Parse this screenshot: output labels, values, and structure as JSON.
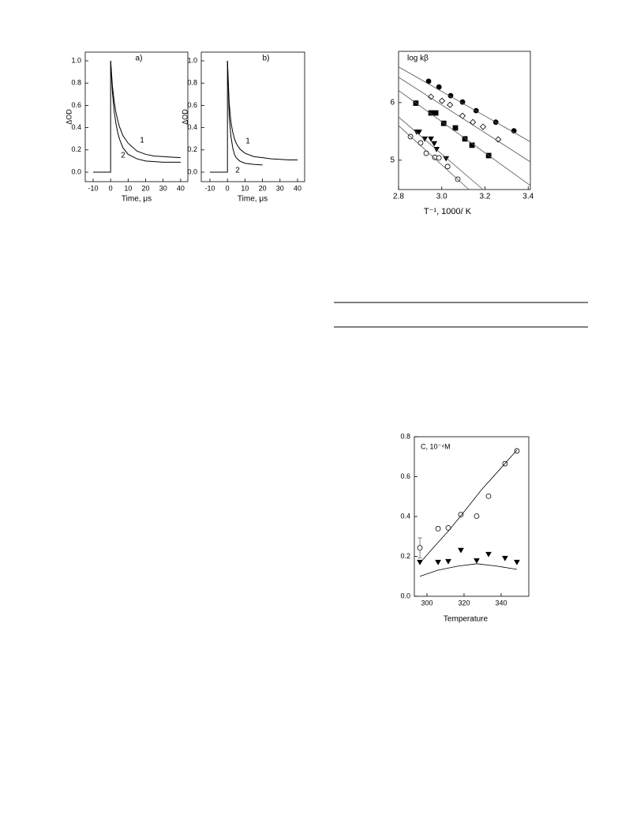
{
  "chart_data": [
    {
      "type": "line",
      "panel_label": "a)",
      "y_label": "ΔOD",
      "x_label": "Time, μs",
      "xlim": [
        -14.5,
        44.1
      ],
      "ylim": [
        -0.085,
        1.078
      ],
      "xticks": [
        -10,
        0,
        10,
        20,
        30,
        40
      ],
      "yticks": [
        {
          "value": 0,
          "label": "0.0"
        },
        0.2,
        0.4,
        0.6,
        0.8,
        {
          "value": 1,
          "label": "1.0"
        }
      ],
      "series": [
        {
          "name": "1",
          "color": "#000000",
          "x": [
            -10,
            -5,
            0,
            0,
            1,
            2,
            3,
            4,
            5,
            7,
            10,
            15,
            20,
            25,
            30,
            35,
            40
          ],
          "values": [
            0,
            0,
            0,
            1.0,
            0.78,
            0.64,
            0.54,
            0.47,
            0.41,
            0.33,
            0.26,
            0.19,
            0.16,
            0.145,
            0.14,
            0.135,
            0.13
          ]
        },
        {
          "name": "2",
          "color": "#000000",
          "x": [
            0,
            1,
            2,
            3,
            4,
            5,
            7,
            10,
            15,
            20,
            25,
            30,
            35,
            40
          ],
          "values": [
            1.0,
            0.72,
            0.55,
            0.44,
            0.36,
            0.3,
            0.22,
            0.16,
            0.12,
            0.1,
            0.095,
            0.09,
            0.09,
            0.09
          ]
        }
      ]
    },
    {
      "type": "line",
      "panel_label": "b)",
      "y_label": "ΔOD",
      "x_label": "Time, μs",
      "xlim": [
        -14.95,
        44.05
      ],
      "ylim": [
        -0.085,
        1.078
      ],
      "xticks": [
        -10,
        0,
        10,
        20,
        30,
        40
      ],
      "yticks": [
        {
          "value": 0,
          "label": "0.0"
        },
        0.2,
        0.4,
        0.6,
        0.8,
        {
          "value": 1,
          "label": "1.0"
        }
      ],
      "series": [
        {
          "name": "1",
          "color": "#000000",
          "x": [
            -10,
            -5,
            0,
            0,
            1,
            2,
            3,
            4,
            5,
            7,
            10,
            15,
            20,
            25,
            30,
            35,
            40
          ],
          "values": [
            0,
            0,
            0,
            1.0,
            0.62,
            0.45,
            0.36,
            0.3,
            0.26,
            0.21,
            0.17,
            0.14,
            0.13,
            0.12,
            0.115,
            0.11,
            0.11
          ]
        },
        {
          "name": "2",
          "color": "#000000",
          "x": [
            0,
            1,
            2,
            3,
            4,
            5,
            7,
            10,
            15,
            20
          ],
          "values": [
            1.0,
            0.5,
            0.32,
            0.22,
            0.16,
            0.13,
            0.1,
            0.08,
            0.07,
            0.065
          ]
        }
      ]
    },
    {
      "type": "scatter",
      "y_label": "log kβ",
      "x_label": "T⁻¹, 1000/ K",
      "xlim": [
        2.8,
        3.41
      ],
      "ylim": [
        4.49,
        6.89
      ],
      "xticks": [
        2.8,
        {
          "value": 3,
          "label": "3.0"
        },
        3.2,
        3.4
      ],
      "yticks": [
        5,
        6
      ],
      "series": [
        {
          "marker": "circle",
          "filled": true,
          "color": "#000000",
          "x": [
            2.939,
            2.987,
            3.041,
            3.096,
            3.159,
            3.25,
            3.334
          ],
          "values": [
            6.37,
            6.27,
            6.12,
            6.01,
            5.86,
            5.66,
            5.51
          ]
        },
        {
          "marker": "diamond",
          "filled": false,
          "color": "#000000",
          "x": [
            2.95,
            3.001,
            3.038,
            3.096,
            3.144,
            3.191,
            3.261
          ],
          "values": [
            6.1,
            6.03,
            5.96,
            5.77,
            5.66,
            5.58,
            5.36
          ]
        },
        {
          "marker": "square",
          "filled": true,
          "color": "#000000",
          "x": [
            2.88,
            2.95,
            2.972,
            3.009,
            3.063,
            3.107,
            3.14,
            3.217
          ],
          "values": [
            5.99,
            5.82,
            5.82,
            5.64,
            5.56,
            5.37,
            5.26,
            5.08
          ]
        },
        {
          "marker": "triangle-down",
          "filled": true,
          "color": "#000000",
          "x": [
            2.884,
            2.895,
            2.921,
            2.95,
            2.965,
            2.976,
            3.02
          ],
          "values": [
            5.49,
            5.49,
            5.37,
            5.37,
            5.29,
            5.19,
            5.03
          ]
        },
        {
          "marker": "circle",
          "filled": false,
          "color": "#000000",
          "x": [
            2.855,
            2.902,
            2.928,
            2.968,
            2.987,
            3.027,
            3.074
          ],
          "values": [
            5.41,
            5.3,
            5.12,
            5.05,
            5.04,
            4.89,
            4.67
          ]
        },
        {
          "mode": "line",
          "color": "#555555",
          "x": [
            2.8,
            3.41
          ],
          "values": [
            6.62,
            5.32
          ]
        },
        {
          "mode": "line",
          "color": "#555555",
          "x": [
            2.8,
            3.41
          ],
          "values": [
            6.44,
            4.97
          ]
        },
        {
          "mode": "line",
          "color": "#555555",
          "x": [
            2.8,
            3.41
          ],
          "values": [
            6.21,
            4.56
          ]
        },
        {
          "mode": "line",
          "color": "#555555",
          "x": [
            2.8,
            3.191
          ],
          "values": [
            5.75,
            4.49
          ]
        },
        {
          "mode": "line",
          "color": "#555555",
          "x": [
            2.8,
            3.126
          ],
          "values": [
            5.6,
            4.49
          ]
        }
      ]
    },
    {
      "type": "scatter",
      "y_label": "C, 10⁻⁴M",
      "x_label": "Temperature",
      "xlim": [
        293.2,
        354.9
      ],
      "ylim": [
        0,
        0.8
      ],
      "xticks": [
        300,
        320,
        340
      ],
      "yticks": [
        {
          "value": 0,
          "label": "0.0"
        },
        0.2,
        0.4,
        0.6,
        0.8
      ],
      "series": [
        {
          "marker": "circle",
          "filled": false,
          "color": "#000000",
          "x": [
            296.2,
            306.0,
            311.5,
            318.3,
            326.8,
            333.2,
            342.1,
            348.5
          ],
          "values": [
            0.243,
            0.339,
            0.343,
            0.41,
            0.402,
            0.502,
            0.665,
            0.729
          ],
          "errors": [
            0.05,
            null,
            null,
            null,
            null,
            null,
            null,
            null
          ]
        },
        {
          "marker": "triangle-down",
          "filled": true,
          "color": "#000000",
          "x": [
            296.2,
            306.0,
            311.5,
            318.3,
            326.8,
            333.2,
            342.1,
            348.5
          ],
          "values": [
            0.171,
            0.171,
            0.175,
            0.231,
            0.179,
            0.211,
            0.191,
            0.171
          ]
        },
        {
          "mode": "line",
          "color": "#000000",
          "x": [
            296.2,
            303.0,
            312.3,
            320.9,
            329.4,
            337.9,
            348.5
          ],
          "values": [
            0.167,
            0.239,
            0.335,
            0.434,
            0.534,
            0.622,
            0.733
          ]
        },
        {
          "mode": "line",
          "color": "#000000",
          "x": [
            296.2,
            306.0,
            316.6,
            326.8,
            337.9,
            348.5
          ],
          "values": [
            0.1,
            0.131,
            0.151,
            0.163,
            0.151,
            0.135
          ]
        }
      ]
    }
  ]
}
